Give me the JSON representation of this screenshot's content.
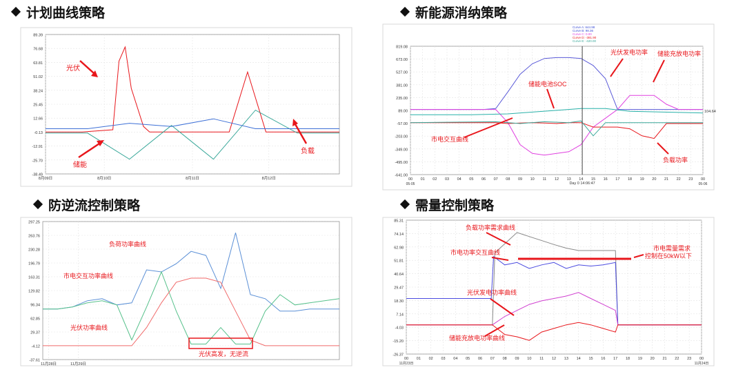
{
  "panels": [
    {
      "title": "计划曲线策略",
      "chart_data": {
        "type": "line",
        "yticks": [
          "89.39",
          "76.68",
          "63.81",
          "51.02",
          "38.24",
          "25.45",
          "12.66",
          "-0.13",
          "-12.91",
          "-25.70",
          "-38.49"
        ],
        "ylim": [
          -38.49,
          89.39
        ],
        "xticks": [
          "8月09日",
          "8月10日",
          "8月11日",
          "8月12日"
        ],
        "x_range": [
          "8月09日",
          "8月13日"
        ],
        "series": [
          {
            "name": "光伏",
            "color": "#e8161b",
            "x_hours": [
              0,
              12,
              22,
              24,
              26,
              28,
              32,
              34,
              36,
              48,
              60,
              66,
              72,
              84,
              88,
              96
            ],
            "values": [
              0,
              0,
              2,
              65,
              78,
              40,
              5,
              0,
              0,
              0,
              0,
              55,
              0,
              0,
              0,
              0
            ]
          },
          {
            "name": "储能",
            "color": "#3aa89a",
            "values": [
              -1,
              -1,
              -25,
              6,
              -25,
              20,
              -1,
              -1
            ]
          },
          {
            "name": "负载",
            "color": "#3c6fd6",
            "values": [
              3,
              3,
              8,
              5,
              12,
              3,
              3,
              3
            ]
          }
        ],
        "annotations": [
          "光伏",
          "储能",
          "负载"
        ]
      }
    },
    {
      "title": "新能源消纳策略",
      "chart_data": {
        "type": "line",
        "yticks": [
          "819.08",
          "673.00",
          "527.00",
          "381.00",
          "235.00",
          "89.00",
          "-57.00",
          "-203.00",
          "-349.00",
          "-495.00",
          "-641.00"
        ],
        "ylim": [
          -641,
          819.08
        ],
        "xticks": [
          "00",
          "01",
          "02",
          "03",
          "04",
          "05",
          "06",
          "07",
          "08",
          "09",
          "10",
          "11",
          "12",
          "13",
          "14",
          "15",
          "16",
          "17",
          "18",
          "19",
          "20",
          "21",
          "22",
          "23",
          "00"
        ],
        "xtick_sub": [
          "05-05",
          "05-06"
        ],
        "cursor_label": "Day 0 14:06:47",
        "right_value": "104.64",
        "legend": [
          {
            "text": "Curve A: 644.98",
            "color": "#3c4fd6"
          },
          {
            "text": "Curve B: 98.36",
            "color": "#3c4fd6"
          },
          {
            "text": "Curve C: 0.00",
            "color": "#e040e0"
          },
          {
            "text": "Curve D: -381.90",
            "color": "#e8161b"
          },
          {
            "text": "Curve E: -420.00",
            "color": "#3aa89a"
          }
        ],
        "series": [
          {
            "name": "光伏发电功率",
            "color": "#5a5ad8",
            "x": [
              0,
              5,
              6,
              7,
              8,
              9,
              10,
              11,
              12,
              13,
              14,
              15,
              16,
              17,
              18,
              24
            ],
            "values": [
              100,
              100,
              100,
              110,
              300,
              500,
              620,
              680,
              690,
              690,
              680,
              600,
              450,
              100,
              100,
              100
            ]
          },
          {
            "name": "储能充放电功率",
            "color": "#e040e0",
            "x": [
              0,
              7,
              8,
              9,
              10,
              11,
              12,
              13,
              14,
              15,
              16,
              17,
              18,
              19,
              20,
              21,
              22,
              24
            ],
            "values": [
              100,
              100,
              -50,
              -300,
              -400,
              -420,
              -400,
              -380,
              -300,
              -100,
              0,
              100,
              260,
              260,
              260,
              160,
              100,
              100
            ]
          },
          {
            "name": "储能电池SOC",
            "color": "#27b0a8",
            "x": [
              0,
              5,
              8,
              10,
              12,
              14,
              16,
              18,
              24
            ],
            "values": [
              40,
              40,
              50,
              70,
              90,
              110,
              110,
              80,
              60
            ]
          },
          {
            "name": "市电交互曲线",
            "color": "#e8161b",
            "x": [
              0,
              7,
              8,
              9,
              10,
              11,
              12,
              13,
              14,
              15,
              16,
              17,
              18,
              19,
              20,
              21,
              22,
              24
            ],
            "values": [
              -50,
              -50,
              -60,
              -55,
              -50,
              -55,
              -60,
              -50,
              -50,
              -100,
              -100,
              -100,
              -120,
              -200,
              -230,
              -60,
              -60,
              -60
            ]
          },
          {
            "name": "负载功率",
            "color": "#3aa89a",
            "x": [
              0,
              7,
              9,
              11,
              13,
              14,
              15,
              16,
              17,
              24
            ],
            "values": [
              -50,
              -40,
              -60,
              -40,
              -50,
              -30,
              -200,
              -50,
              -50,
              -50
            ]
          }
        ],
        "annotations": [
          "储能电池SOC",
          "光伏发电功率",
          "储能充放电功率",
          "市电交互曲线",
          "负载功率"
        ]
      }
    },
    {
      "title": "防逆流控制策略",
      "chart_data": {
        "type": "line",
        "yticks": [
          "297.25",
          "263.76",
          "230.28",
          "196.79",
          "163.31",
          "129.82",
          "96.34",
          "62.85",
          "29.37",
          "-4.12",
          "-37.61"
        ],
        "ylim": [
          -37.61,
          297.25
        ],
        "xticks": [
          "11月28日",
          "11月29日"
        ],
        "series": [
          {
            "name": "负荷功率曲线",
            "color": "#5a8fd6",
            "x": [
              0,
              5,
              10,
              15,
              20,
              25,
              30,
              35,
              40,
              45,
              50,
              55,
              60,
              65,
              70,
              75,
              80,
              85,
              90,
              100
            ],
            "values": [
              85,
              85,
              90,
              105,
              110,
              95,
              100,
              180,
              175,
              195,
              225,
              215,
              135,
              270,
              120,
              110,
              80,
              80,
              85,
              85
            ]
          },
          {
            "name": "市电交互功率曲线",
            "color": "#55c08a",
            "x": [
              0,
              5,
              10,
              15,
              20,
              25,
              30,
              35,
              40,
              45,
              50,
              55,
              60,
              65,
              70,
              75,
              80,
              85,
              90,
              100
            ],
            "values": [
              85,
              85,
              90,
              100,
              105,
              95,
              10,
              90,
              175,
              80,
              0,
              0,
              40,
              0,
              0,
              80,
              120,
              95,
              100,
              110
            ]
          },
          {
            "name": "光伏功率曲线",
            "color": "#f06a6a",
            "x": [
              0,
              25,
              30,
              35,
              40,
              45,
              50,
              55,
              60,
              65,
              70,
              75,
              100
            ],
            "values": [
              -4,
              -4,
              -4,
              40,
              100,
              150,
              160,
              160,
              150,
              80,
              10,
              -4,
              -4
            ]
          }
        ],
        "annotations": [
          "负荷功率曲线",
          "市电交互功率曲线",
          "光伏功率曲线",
          "光伏高发，无逆流"
        ]
      }
    },
    {
      "title": "需量控制策略",
      "chart_data": {
        "type": "line",
        "yticks": [
          "85.31",
          "74.14",
          "62.98",
          "51.81",
          "40.64",
          "29.47",
          "18.30",
          "7.14",
          "-4.03",
          "-15.20",
          "-26.37"
        ],
        "ylim": [
          -26.37,
          85.31
        ],
        "xticks": [
          "00",
          "01",
          "02",
          "03",
          "04",
          "05",
          "06",
          "07",
          "08",
          "09",
          "10",
          "11",
          "12",
          "13",
          "14",
          "15",
          "16",
          "17",
          "18",
          "19",
          "20",
          "21",
          "22",
          "23",
          "00"
        ],
        "xtick_sub": [
          "11月23日",
          "11月24日"
        ],
        "series": [
          {
            "name": "负载功率需求曲线",
            "color": "#888888",
            "x": [
              0,
              7,
              7.2,
              9,
              12,
              13,
              14,
              17,
              17.2,
              24
            ],
            "values": [
              -2,
              -2,
              58,
              75,
              65,
              62,
              60,
              60,
              -2,
              -2
            ]
          },
          {
            "name": "市电功率交互曲线",
            "color": "#4a4ae0",
            "x": [
              0,
              6.9,
              7.1,
              8,
              9,
              10,
              11,
              12,
              13,
              14,
              15,
              16,
              17,
              17.2,
              24
            ],
            "values": [
              20,
              20,
              55,
              48,
              50,
              45,
              48,
              50,
              45,
              48,
              47,
              48,
              50,
              -2,
              -2
            ]
          },
          {
            "name": "光伏发电功率曲线",
            "color": "#d040d0",
            "x": [
              0,
              7,
              8,
              9,
              10,
              11,
              12,
              13,
              14,
              15,
              16,
              17,
              17.2,
              24
            ],
            "values": [
              -2,
              -2,
              5,
              10,
              15,
              18,
              20,
              22,
              25,
              20,
              15,
              10,
              -2,
              -2
            ]
          },
          {
            "name": "储能充放电功率曲线",
            "color": "#e8161b",
            "x": [
              0,
              7,
              8,
              9,
              10,
              11,
              12,
              13,
              14,
              15,
              16,
              17,
              17.2,
              24
            ],
            "values": [
              -2,
              -2,
              -10,
              -12,
              -15,
              -8,
              -5,
              -2,
              0,
              -2,
              -5,
              -8,
              -2,
              -2
            ]
          }
        ],
        "annotations": [
          "负载功率需求曲线",
          "市电功率交互曲线",
          "光伏发电功率曲线",
          "储能充放电功率曲线",
          "市电需量需求",
          "控制在50kW以下"
        ]
      }
    }
  ]
}
